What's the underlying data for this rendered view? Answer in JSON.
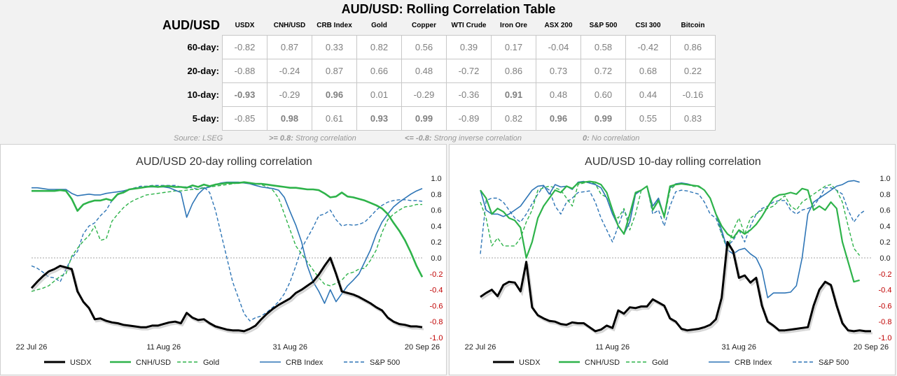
{
  "title": "AUD/USD: Rolling Correlation Table",
  "table": {
    "row_header": "AUD/USD",
    "columns": [
      "USDX",
      "CNH/USD",
      "CRB Index",
      "Gold",
      "Copper",
      "WTI Crude",
      "Iron Ore",
      "ASX 200",
      "S&P 500",
      "CSI 300",
      "Bitcoin"
    ],
    "rows": [
      {
        "label": "60-day:",
        "values": [
          "-0.82",
          "0.87",
          "0.33",
          "0.82",
          "0.56",
          "0.39",
          "0.17",
          "-0.04",
          "0.58",
          "-0.42",
          "0.86"
        ]
      },
      {
        "label": "20-day:",
        "values": [
          "-0.88",
          "-0.24",
          "0.87",
          "0.66",
          "0.48",
          "-0.72",
          "0.86",
          "0.73",
          "0.72",
          "0.68",
          "0.22"
        ]
      },
      {
        "label": "10-day:",
        "values": [
          "-0.93",
          "-0.29",
          "0.96",
          "0.01",
          "-0.29",
          "-0.36",
          "0.91",
          "0.48",
          "0.60",
          "0.44",
          "-0.16"
        ]
      },
      {
        "label": "5-day:",
        "values": [
          "-0.85",
          "0.98",
          "0.61",
          "0.93",
          "0.99",
          "-0.89",
          "0.82",
          "0.96",
          "0.99",
          "0.55",
          "0.83"
        ]
      }
    ]
  },
  "footer": {
    "source": "Source: LSEG",
    "strong_key": ">= 0.8:",
    "strong_text": "Strong correlation",
    "inverse_key": "<= -0.8:",
    "inverse_text": "Strong inverse correlation",
    "none_key": "0:",
    "none_text": "No correlation"
  },
  "colors": {
    "usdx": "#000000",
    "cnh": "#2eb34a",
    "gold": "#2eb34a",
    "crb": "#2e75b6",
    "sp500": "#2e75b6",
    "negative_tick": "#c00000"
  },
  "chart_data": [
    {
      "type": "line",
      "title": "AUD/USD 20-day rolling correlation",
      "x_ticks": [
        "22 Jul 26",
        "11 Aug 26",
        "31 Aug 26",
        "20 Sep 26"
      ],
      "ylim": [
        -1.0,
        1.0
      ],
      "y_ticks": [
        "1.0",
        "0.8",
        "0.6",
        "0.4",
        "0.2",
        "0.0",
        "-0.2",
        "-0.4",
        "-0.6",
        "-0.8",
        "-1.0"
      ],
      "series": [
        {
          "name": "USDX",
          "style": "solid-thick",
          "values": [
            -0.38,
            -0.3,
            -0.23,
            -0.17,
            -0.14,
            -0.1,
            -0.12,
            -0.14,
            -0.42,
            -0.55,
            -0.63,
            -0.77,
            -0.76,
            -0.79,
            -0.81,
            -0.82,
            -0.84,
            -0.85,
            -0.86,
            -0.87,
            -0.87,
            -0.85,
            -0.85,
            -0.83,
            -0.81,
            -0.8,
            -0.82,
            -0.69,
            -0.75,
            -0.78,
            -0.77,
            -0.82,
            -0.86,
            -0.88,
            -0.9,
            -0.91,
            -0.91,
            -0.92,
            -0.89,
            -0.85,
            -0.77,
            -0.7,
            -0.64,
            -0.59,
            -0.55,
            -0.51,
            -0.44,
            -0.4,
            -0.35,
            -0.3,
            -0.21,
            -0.1,
            0.0,
            -0.2,
            -0.42,
            -0.44,
            -0.46,
            -0.49,
            -0.53,
            -0.57,
            -0.62,
            -0.66,
            -0.75,
            -0.8,
            -0.83,
            -0.84,
            -0.86,
            -0.86,
            -0.87
          ]
        },
        {
          "name": "CNH/USD",
          "style": "solid",
          "values": [
            0.84,
            0.84,
            0.84,
            0.84,
            0.84,
            0.85,
            0.84,
            0.74,
            0.59,
            0.67,
            0.7,
            0.72,
            0.72,
            0.74,
            0.72,
            0.8,
            0.82,
            0.86,
            0.87,
            0.88,
            0.89,
            0.9,
            0.89,
            0.9,
            0.9,
            0.89,
            0.89,
            0.88,
            0.91,
            0.89,
            0.92,
            0.9,
            0.92,
            0.93,
            0.94,
            0.94,
            0.94,
            0.95,
            0.94,
            0.93,
            0.93,
            0.92,
            0.91,
            0.9,
            0.89,
            0.88,
            0.88,
            0.87,
            0.86,
            0.86,
            0.85,
            0.81,
            0.76,
            0.77,
            0.82,
            0.77,
            0.76,
            0.74,
            0.72,
            0.69,
            0.66,
            0.62,
            0.55,
            0.44,
            0.34,
            0.22,
            0.07,
            -0.1,
            -0.24
          ]
        },
        {
          "name": "Gold",
          "style": "dashed",
          "values": [
            -0.42,
            -0.4,
            -0.38,
            -0.35,
            -0.29,
            -0.23,
            -0.2,
            0.02,
            0.12,
            0.21,
            0.28,
            0.4,
            0.22,
            0.24,
            0.46,
            0.55,
            0.63,
            0.69,
            0.73,
            0.76,
            0.79,
            0.8,
            0.81,
            0.82,
            0.83,
            0.84,
            0.84,
            0.85,
            0.86,
            0.86,
            0.88,
            0.89,
            0.9,
            0.91,
            0.92,
            0.93,
            0.94,
            0.94,
            0.94,
            0.93,
            0.92,
            0.89,
            0.85,
            0.75,
            0.55,
            0.35,
            0.15,
            0.05,
            -0.05,
            -0.15,
            -0.25,
            -0.33,
            -0.35,
            -0.32,
            -0.28,
            -0.2,
            -0.18,
            -0.14,
            -0.13,
            -0.03,
            0.1,
            0.32,
            0.48,
            0.55,
            0.6,
            0.64,
            0.65,
            0.67,
            0.67
          ]
        },
        {
          "name": "CRB Index",
          "style": "solid",
          "values": [
            0.88,
            0.88,
            0.87,
            0.86,
            0.86,
            0.86,
            0.86,
            0.81,
            0.78,
            0.79,
            0.8,
            0.79,
            0.79,
            0.81,
            0.82,
            0.83,
            0.84,
            0.86,
            0.87,
            0.88,
            0.89,
            0.89,
            0.89,
            0.89,
            0.88,
            0.85,
            0.82,
            0.51,
            0.68,
            0.8,
            0.87,
            0.89,
            0.92,
            0.94,
            0.95,
            0.95,
            0.95,
            0.94,
            0.93,
            0.91,
            0.89,
            0.88,
            0.87,
            0.85,
            0.76,
            0.58,
            0.41,
            0.2,
            -0.1,
            -0.3,
            -0.42,
            -0.57,
            -0.4,
            -0.55,
            -0.45,
            -0.35,
            -0.28,
            -0.2,
            -0.05,
            0.1,
            0.3,
            0.45,
            0.55,
            0.64,
            0.7,
            0.75,
            0.8,
            0.84,
            0.87
          ]
        },
        {
          "name": "S&P 500",
          "style": "dashed",
          "values": [
            -0.1,
            -0.13,
            -0.18,
            -0.24,
            -0.25,
            -0.3,
            -0.14,
            0.0,
            0.08,
            0.3,
            0.4,
            0.44,
            0.53,
            0.6,
            0.72,
            0.79,
            0.83,
            0.86,
            0.88,
            0.9,
            0.9,
            0.91,
            0.91,
            0.91,
            0.91,
            0.91,
            0.89,
            0.89,
            0.88,
            0.86,
            0.89,
            0.82,
            0.6,
            0.3,
            0.0,
            -0.3,
            -0.5,
            -0.7,
            -0.79,
            -0.75,
            -0.73,
            -0.68,
            -0.62,
            -0.55,
            -0.45,
            -0.3,
            -0.1,
            0.12,
            0.25,
            0.38,
            0.53,
            0.55,
            0.6,
            0.48,
            0.4,
            0.42,
            0.41,
            0.42,
            0.45,
            0.52,
            0.6,
            0.66,
            0.7,
            0.72,
            0.73,
            0.73,
            0.72,
            0.72,
            0.71
          ]
        }
      ]
    },
    {
      "type": "line",
      "title": "AUD/USD 10-day rolling correlation",
      "x_ticks": [
        "22 Jul 26",
        "11 Aug 26",
        "31 Aug 26",
        "20 Sep 26"
      ],
      "ylim": [
        -1.0,
        1.0
      ],
      "y_ticks": [
        "1.0",
        "0.8",
        "0.6",
        "0.4",
        "0.2",
        "0.0",
        "-0.2",
        "-0.4",
        "-0.6",
        "-0.8",
        "-1.0"
      ],
      "series": [
        {
          "name": "USDX",
          "style": "solid-thick",
          "values": [
            -0.49,
            -0.44,
            -0.4,
            -0.48,
            -0.34,
            -0.3,
            -0.31,
            -0.42,
            -0.05,
            -0.62,
            -0.72,
            -0.76,
            -0.79,
            -0.8,
            -0.83,
            -0.84,
            -0.81,
            -0.82,
            -0.82,
            -0.87,
            -0.92,
            -0.9,
            -0.85,
            -0.88,
            -0.66,
            -0.7,
            -0.62,
            -0.63,
            -0.61,
            -0.61,
            -0.52,
            -0.56,
            -0.6,
            -0.76,
            -0.8,
            -0.89,
            -0.91,
            -0.9,
            -0.89,
            -0.87,
            -0.84,
            -0.77,
            -0.5,
            0.2,
            0.08,
            -0.25,
            -0.22,
            -0.31,
            -0.25,
            -0.6,
            -0.8,
            -0.85,
            -0.91,
            -0.91,
            -0.9,
            -0.89,
            -0.88,
            -0.87,
            -0.6,
            -0.4,
            -0.3,
            -0.34,
            -0.6,
            -0.82,
            -0.91,
            -0.92,
            -0.91,
            -0.92,
            -0.92
          ]
        },
        {
          "name": "CNH/USD",
          "style": "solid-medium",
          "values": [
            0.85,
            0.75,
            0.55,
            0.62,
            0.58,
            0.5,
            0.47,
            0.38,
            0.0,
            0.2,
            0.5,
            0.65,
            0.75,
            0.85,
            0.82,
            0.9,
            0.87,
            0.94,
            0.95,
            0.96,
            0.95,
            0.92,
            0.82,
            0.6,
            0.4,
            0.3,
            0.55,
            0.82,
            0.85,
            0.9,
            0.6,
            0.72,
            0.52,
            0.9,
            0.92,
            0.93,
            0.92,
            0.91,
            0.9,
            0.85,
            0.75,
            0.55,
            0.4,
            0.3,
            0.25,
            0.35,
            0.3,
            0.35,
            0.42,
            0.52,
            0.64,
            0.75,
            0.79,
            0.8,
            0.82,
            0.8,
            0.87,
            0.85,
            0.6,
            0.65,
            0.6,
            0.7,
            0.62,
            0.2,
            -0.05,
            -0.3,
            -0.28
          ]
        },
        {
          "name": "Gold",
          "style": "dashed",
          "values": [
            0.7,
            0.5,
            0.15,
            0.25,
            0.15,
            0.15,
            0.15,
            0.25,
            0.45,
            0.6,
            0.85,
            0.88,
            0.9,
            0.88,
            0.85,
            0.75,
            0.65,
            0.92,
            0.94,
            0.95,
            0.93,
            0.8,
            0.76,
            0.55,
            0.5,
            0.62,
            0.35,
            0.55,
            0.85,
            0.9,
            0.6,
            0.75,
            0.5,
            0.85,
            0.92,
            0.94,
            0.92,
            0.9,
            0.89,
            0.85,
            0.75,
            0.55,
            0.3,
            0.1,
            0.35,
            0.5,
            0.3,
            0.5,
            0.55,
            0.6,
            0.62,
            0.65,
            0.72,
            0.78,
            0.65,
            0.6,
            0.7,
            0.75,
            0.8,
            0.85,
            0.9,
            0.92,
            0.85,
            0.7,
            0.4,
            0.12,
            0.03
          ]
        },
        {
          "name": "CRB Index",
          "style": "solid",
          "values": [
            0.85,
            0.6,
            0.55,
            0.55,
            0.52,
            0.55,
            0.6,
            0.65,
            0.75,
            0.85,
            0.9,
            0.91,
            0.8,
            0.92,
            0.89,
            0.9,
            0.86,
            0.95,
            0.96,
            0.94,
            0.92,
            0.88,
            0.75,
            0.55,
            0.4,
            0.3,
            0.45,
            0.8,
            0.85,
            0.9,
            0.65,
            0.75,
            0.52,
            0.88,
            0.93,
            0.94,
            0.93,
            0.91,
            0.9,
            0.85,
            0.75,
            0.55,
            0.35,
            0.1,
            0.05,
            0.1,
            0.12,
            0.05,
            0.0,
            -0.15,
            -0.5,
            -0.44,
            -0.44,
            -0.44,
            -0.43,
            -0.35,
            0.0,
            0.55,
            0.7,
            0.75,
            0.8,
            0.85,
            0.9,
            0.92,
            0.96,
            0.97,
            0.95
          ]
        },
        {
          "name": "S&P 500",
          "style": "dashed",
          "values": [
            0.05,
            0.72,
            0.75,
            0.75,
            0.7,
            0.6,
            0.5,
            0.45,
            0.55,
            0.68,
            0.8,
            0.9,
            0.85,
            0.65,
            0.55,
            0.7,
            0.75,
            0.82,
            0.83,
            0.84,
            0.7,
            0.5,
            0.35,
            0.2,
            0.4,
            0.6,
            0.45,
            0.8,
            0.85,
            0.9,
            0.55,
            0.6,
            0.4,
            0.65,
            0.83,
            0.85,
            0.84,
            0.82,
            0.8,
            0.7,
            0.55,
            0.5,
            0.3,
            0.15,
            0.22,
            0.35,
            0.2,
            0.4,
            0.55,
            0.62,
            0.65,
            0.7,
            0.72,
            0.72,
            0.6,
            0.55,
            0.6,
            0.62,
            0.65,
            0.75,
            0.88,
            0.88,
            0.85,
            0.8,
            0.6,
            0.45,
            0.55,
            0.6
          ]
        }
      ]
    }
  ]
}
